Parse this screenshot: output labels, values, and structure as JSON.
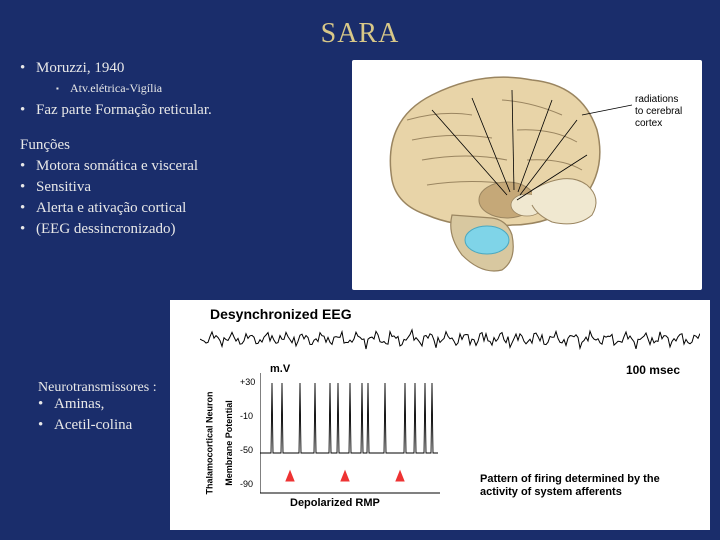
{
  "title": "SARA",
  "bullets": {
    "b1": "Moruzzi, 1940",
    "b1sub": "Atv.elétrica-Vigília",
    "b2": "Faz parte Formação reticular.",
    "funcoes": "Funções",
    "f1": "Motora somática e visceral",
    "f2": "Sensitiva",
    "f3": "Alerta e ativação cortical",
    "f4": "(EEG dessincronizado)"
  },
  "neuro": {
    "title": "Neurotransmissores :",
    "n1": "Aminas,",
    "n2": "Acetil-colina"
  },
  "brain": {
    "label_radiations": "radiations to cerebral cortex",
    "cortex_color": "#e8d4a8",
    "cortex_stroke": "#9a8560",
    "inner_fill": "#f0e8d0",
    "thalamus_color": "#c5a878",
    "pons_color": "#7fd4e8",
    "stem_color": "#d8c8a0",
    "line_color": "#000"
  },
  "eeg": {
    "title": "Desynchronized EEG",
    "trace_color": "#000",
    "axis_label_1": "Thalamocortical Neuron",
    "axis_label_2": "Membrane Potential",
    "mv": "m.V",
    "msec": "100 msec",
    "rmp": "Depolarized RMP",
    "pattern": "Pattern of firing determined by the activity of system afferents",
    "yticks": [
      "+30",
      "-10",
      "-50",
      "-90"
    ],
    "ylim": [
      -90,
      30
    ],
    "spike_color": "#000",
    "arrow_color": "#e33",
    "spikes_x": [
      12,
      22,
      40,
      55,
      70,
      78,
      90,
      102,
      108,
      125,
      145,
      155,
      165,
      172
    ]
  }
}
